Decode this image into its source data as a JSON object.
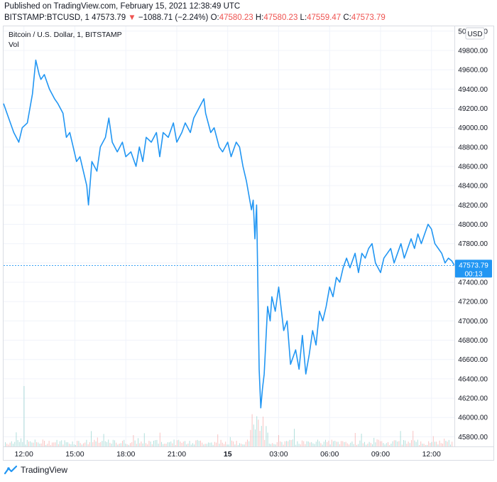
{
  "header": {
    "published": "Published on TradingView.com, February 15, 2021 12:38:49 UTC",
    "symbol": "BITSTAMP:BTCUSD, 1",
    "last": "47573.79",
    "arrow": "▼",
    "change": "−1088.71 (−2.24%)",
    "o_label": "O:",
    "o_value": "47580.23",
    "h_label": "H:",
    "h_value": "47580.23",
    "l_label": "L:",
    "l_value": "47559.47",
    "c_label": "C:",
    "c_value": "47573.79"
  },
  "legend": {
    "title": "Bitcoin / U.S. Dollar, 1, BITSTAMP",
    "vol": "Vol"
  },
  "currency_button": "USD",
  "price_tag": {
    "value": "47573.79",
    "countdown": "00:13"
  },
  "brand": "TradingView",
  "colors": {
    "line": "#2196f3",
    "down": "#ef5350",
    "up": "#26a69a",
    "tag": "#2196f3"
  },
  "chart_data": {
    "type": "line",
    "title": "Bitcoin / U.S. Dollar, 1, BITSTAMP",
    "ylim": [
      45700,
      50050
    ],
    "y_ticks": [
      45800,
      46000,
      46200,
      46400,
      46600,
      46800,
      47000,
      47200,
      47400,
      47600,
      47800,
      48000,
      48200,
      48400,
      48600,
      48800,
      49000,
      49200,
      49400,
      49600,
      49800,
      50000
    ],
    "y_tick_labels": [
      "45800.00",
      "46000.00",
      "46200.00",
      "46400.00",
      "46600.00",
      "46800.00",
      "47000.00",
      "47200.00",
      "47400.00",
      "47600.00",
      "47800.00",
      "48000.00",
      "48200.00",
      "48400.00",
      "48600.00",
      "48800.00",
      "49000.00",
      "49200.00",
      "49400.00",
      "49600.00",
      "49800.00",
      "50000.00"
    ],
    "xlim": [
      10.8,
      37.35
    ],
    "x_ticks": [
      {
        "x": 12,
        "label": "12:00",
        "bold": false
      },
      {
        "x": 15,
        "label": "15:00",
        "bold": false
      },
      {
        "x": 18,
        "label": "18:00",
        "bold": false
      },
      {
        "x": 21,
        "label": "21:00",
        "bold": false
      },
      {
        "x": 24,
        "label": "15",
        "bold": true
      },
      {
        "x": 27,
        "label": "03:00",
        "bold": false
      },
      {
        "x": 30,
        "label": "06:00",
        "bold": false
      },
      {
        "x": 33,
        "label": "09:00",
        "bold": false
      },
      {
        "x": 36,
        "label": "12:00",
        "bold": false
      }
    ],
    "series": [
      {
        "x": [
          10.8,
          11.1,
          11.4,
          11.7,
          11.9,
          12.2,
          12.5,
          12.7,
          12.9,
          13.0,
          13.2,
          13.5,
          13.8,
          14.0,
          14.3,
          14.5,
          14.7,
          14.9,
          15.1,
          15.3,
          15.5,
          15.7,
          15.8,
          16.0,
          16.3,
          16.5,
          16.8,
          17.0,
          17.2,
          17.5,
          17.8,
          18.0,
          18.3,
          18.6,
          18.8,
          19.0,
          19.2,
          19.5,
          19.8,
          20.0,
          20.2,
          20.5,
          20.8,
          21.0,
          21.3,
          21.5,
          21.8,
          22.0,
          22.3,
          22.6,
          22.7,
          23.0,
          23.2,
          23.5,
          23.7,
          24.0,
          24.2,
          24.5,
          24.7,
          24.9,
          25.1,
          25.3,
          25.4,
          25.5,
          25.6,
          25.7,
          25.75,
          25.85,
          25.95,
          26.05,
          26.15,
          26.25,
          26.35,
          26.5,
          26.6,
          26.8,
          27.0,
          27.3,
          27.5,
          27.7,
          28.0,
          28.2,
          28.4,
          28.6,
          28.8,
          29.0,
          29.2,
          29.4,
          29.6,
          29.8,
          30.0,
          30.2,
          30.4,
          30.6,
          30.8,
          31.0,
          31.2,
          31.5,
          31.7,
          31.9,
          32.1,
          32.3,
          32.5,
          32.7,
          33.0,
          33.2,
          33.4,
          33.6,
          33.8,
          34.0,
          34.2,
          34.4,
          34.6,
          34.8,
          35.0,
          35.2,
          35.4,
          35.6,
          35.8,
          36.0,
          36.2,
          36.4,
          36.6,
          36.8,
          37.0,
          37.2,
          37.35
        ],
        "y": [
          49250,
          49100,
          48950,
          48850,
          49000,
          49050,
          49350,
          49700,
          49550,
          49500,
          49550,
          49400,
          49300,
          49250,
          49150,
          48900,
          48950,
          48800,
          48650,
          48700,
          48550,
          48400,
          48200,
          48650,
          48550,
          48800,
          48900,
          49100,
          48850,
          48750,
          48850,
          48700,
          48750,
          48600,
          48800,
          48650,
          48900,
          48850,
          48950,
          48700,
          48950,
          48900,
          49050,
          48850,
          48950,
          49050,
          48950,
          49100,
          49200,
          49300,
          49150,
          48950,
          49000,
          48800,
          48750,
          48850,
          48700,
          48850,
          48800,
          48600,
          48450,
          48250,
          48150,
          48250,
          47850,
          48200,
          47650,
          46500,
          46100,
          46300,
          46450,
          46800,
          47150,
          47000,
          47250,
          47100,
          47350,
          46900,
          47000,
          46550,
          46700,
          46500,
          46850,
          46450,
          46650,
          46900,
          46750,
          47100,
          47000,
          47150,
          47350,
          47250,
          47450,
          47400,
          47550,
          47650,
          47550,
          47700,
          47500,
          47700,
          47650,
          47750,
          47800,
          47600,
          47500,
          47650,
          47700,
          47750,
          47600,
          47700,
          47800,
          47650,
          47750,
          47850,
          47750,
          47900,
          47800,
          47900,
          48000,
          47950,
          47800,
          47750,
          47700,
          47600,
          47650,
          47620,
          47573.79
        ]
      }
    ],
    "last_value": 47573.79,
    "volume_note": "volume bars, red and green"
  }
}
